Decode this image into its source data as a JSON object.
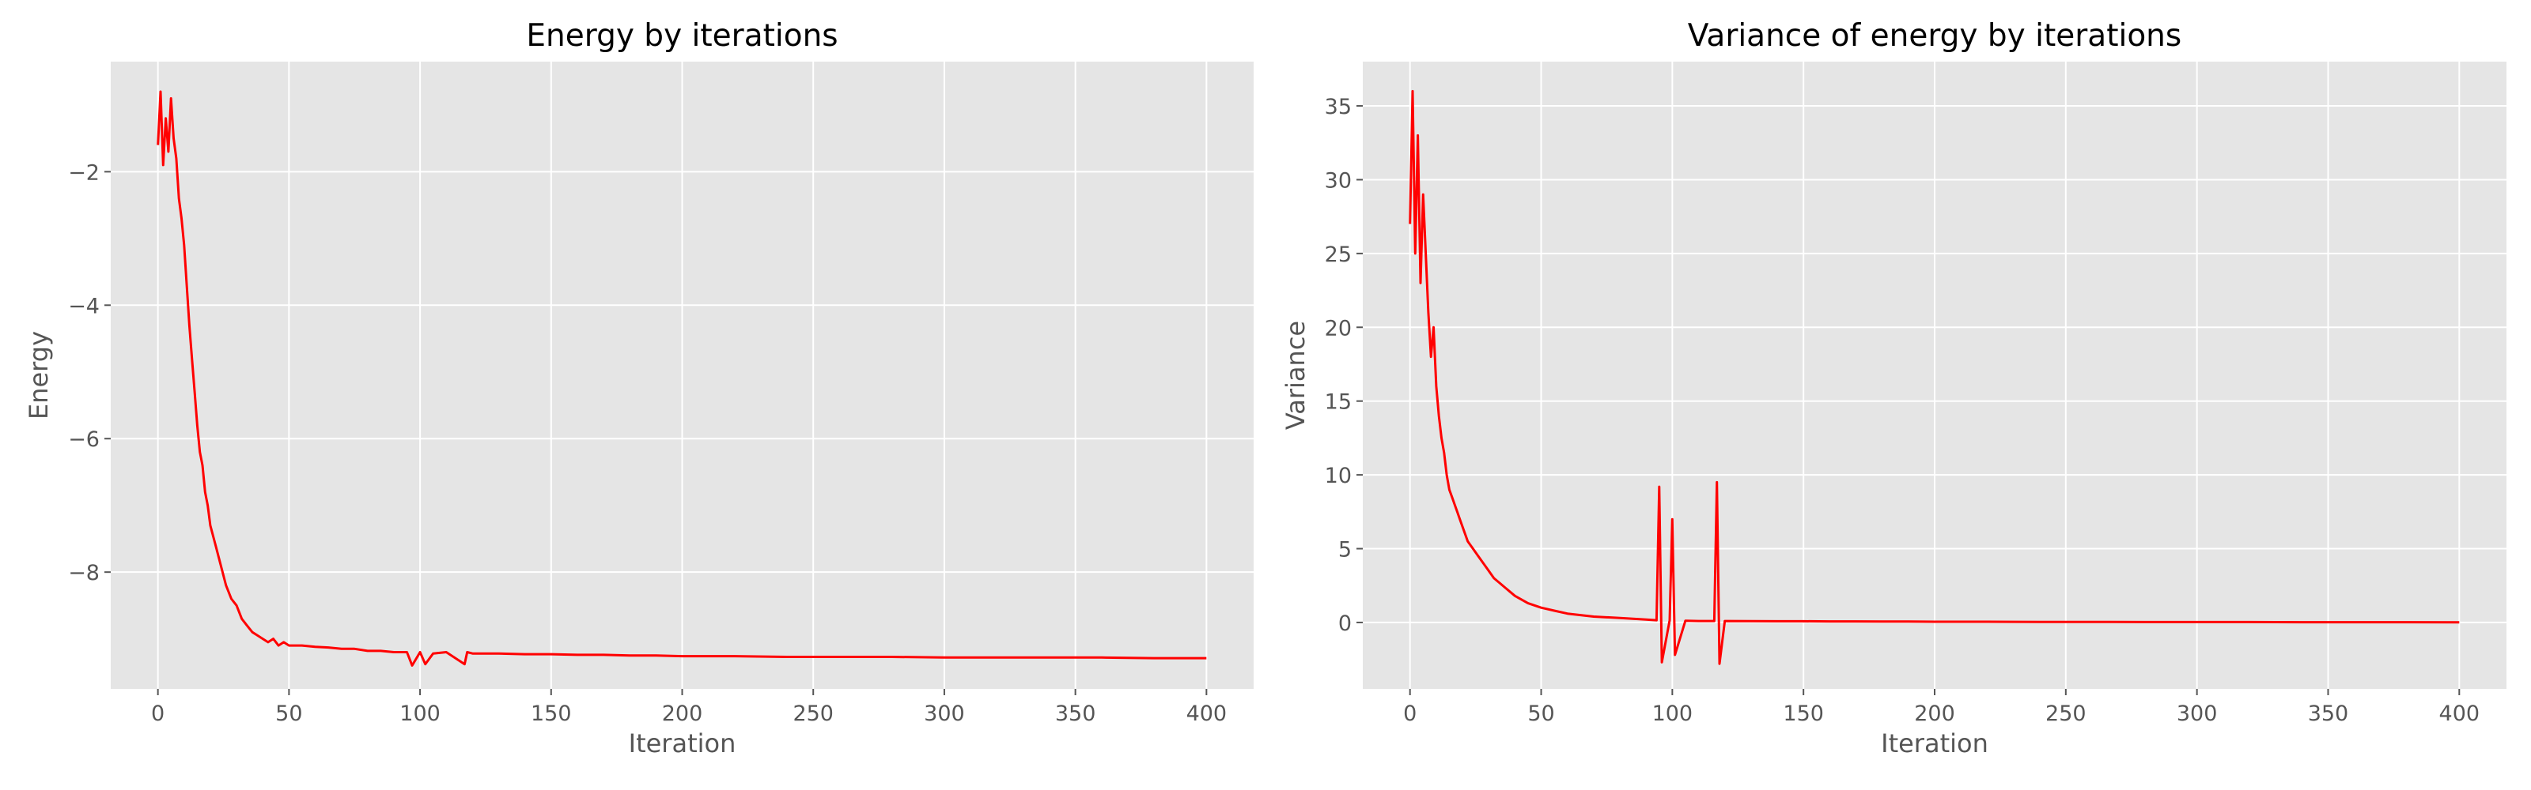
{
  "chart_data": [
    {
      "type": "line",
      "title": "Energy by iterations",
      "xlabel": "Iteration",
      "ylabel": "Energy",
      "xlim": [
        -18,
        418
      ],
      "ylim": [
        -9.75,
        -0.35
      ],
      "xticks": [
        0,
        50,
        100,
        150,
        200,
        250,
        300,
        350,
        400
      ],
      "yticks": [
        -8,
        -6,
        -4,
        -2
      ],
      "grid": true,
      "color": "#ff0000",
      "series": [
        {
          "x": [
            0,
            1,
            2,
            3,
            4,
            5,
            6,
            7,
            8,
            9,
            10,
            11,
            12,
            13,
            14,
            15,
            16,
            17,
            18,
            19,
            20,
            22,
            24,
            26,
            28,
            30,
            32,
            34,
            36,
            38,
            40,
            42,
            44,
            46,
            48,
            50,
            55,
            60,
            65,
            70,
            75,
            80,
            85,
            90,
            95,
            97,
            100,
            102,
            105,
            110,
            117,
            118,
            120,
            130,
            140,
            150,
            160,
            170,
            180,
            190,
            200,
            220,
            240,
            260,
            280,
            300,
            320,
            340,
            360,
            380,
            400
          ],
          "y": [
            -1.6,
            -0.8,
            -1.9,
            -1.2,
            -1.7,
            -0.9,
            -1.5,
            -1.8,
            -2.4,
            -2.7,
            -3.1,
            -3.7,
            -4.3,
            -4.8,
            -5.3,
            -5.8,
            -6.2,
            -6.4,
            -6.8,
            -7.0,
            -7.3,
            -7.6,
            -7.9,
            -8.2,
            -8.4,
            -8.5,
            -8.7,
            -8.8,
            -8.9,
            -8.95,
            -9.0,
            -9.05,
            -9.0,
            -9.1,
            -9.05,
            -9.1,
            -9.1,
            -9.12,
            -9.13,
            -9.15,
            -9.15,
            -9.18,
            -9.18,
            -9.2,
            -9.2,
            -9.4,
            -9.2,
            -9.38,
            -9.22,
            -9.2,
            -9.38,
            -9.2,
            -9.22,
            -9.22,
            -9.23,
            -9.23,
            -9.24,
            -9.24,
            -9.25,
            -9.25,
            -9.26,
            -9.26,
            -9.27,
            -9.27,
            -9.27,
            -9.28,
            -9.28,
            -9.28,
            -9.28,
            -9.29,
            -9.29
          ]
        }
      ]
    },
    {
      "type": "line",
      "title": "Variance of energy by iterations",
      "xlabel": "Iteration",
      "ylabel": "Variance",
      "xlim": [
        -18,
        418
      ],
      "ylim": [
        -4.5,
        38
      ],
      "xticks": [
        0,
        50,
        100,
        150,
        200,
        250,
        300,
        350,
        400
      ],
      "yticks": [
        0,
        5,
        10,
        15,
        20,
        25,
        30,
        35
      ],
      "grid": true,
      "color": "#ff0000",
      "series": [
        {
          "x": [
            0,
            1,
            2,
            3,
            4,
            5,
            6,
            7,
            8,
            9,
            10,
            11,
            12,
            13,
            14,
            15,
            16,
            17,
            18,
            19,
            20,
            22,
            24,
            26,
            28,
            30,
            32,
            34,
            36,
            38,
            40,
            45,
            50,
            55,
            60,
            65,
            70,
            80,
            90,
            94,
            95,
            96,
            99,
            100,
            101,
            105,
            110,
            116,
            117,
            118,
            120,
            130,
            140,
            150,
            160,
            170,
            180,
            190,
            200,
            220,
            240,
            260,
            280,
            300,
            320,
            340,
            360,
            380,
            400
          ],
          "y": [
            27,
            36,
            25,
            33,
            23,
            29,
            25,
            21,
            18,
            20,
            16,
            14,
            12.5,
            11.5,
            10,
            9,
            8.5,
            8,
            7.5,
            7,
            6.5,
            5.5,
            5,
            4.5,
            4,
            3.5,
            3,
            2.7,
            2.4,
            2.1,
            1.8,
            1.3,
            1.0,
            0.8,
            0.6,
            0.5,
            0.4,
            0.3,
            0.2,
            0.15,
            9.2,
            -2.7,
            0.15,
            7.0,
            -2.2,
            0.12,
            0.1,
            0.1,
            9.5,
            -2.8,
            0.1,
            0.09,
            0.08,
            0.08,
            0.07,
            0.07,
            0.06,
            0.06,
            0.05,
            0.05,
            0.04,
            0.04,
            0.03,
            0.03,
            0.03,
            0.02,
            0.02,
            0.02,
            0.01
          ]
        }
      ]
    }
  ]
}
